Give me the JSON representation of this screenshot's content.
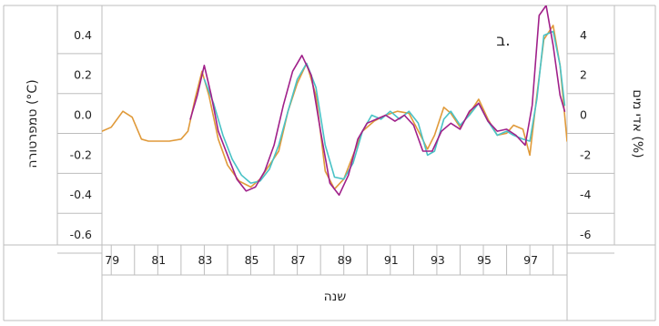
{
  "chart_data": {
    "type": "line",
    "panel_label": "ב.",
    "xlabel": "שנה",
    "ylabel_left": "טמפרטורה (°C)",
    "ylabel_right": "אדי מים (%)",
    "xlim": [
      78.6,
      98.6
    ],
    "ylim_left": [
      -0.65,
      0.55
    ],
    "ylim_right": [
      -6.5,
      5.5
    ],
    "x_ticks": [
      "79",
      "81",
      "83",
      "85",
      "87",
      "89",
      "91",
      "93",
      "95",
      "97"
    ],
    "x_tick_values": [
      79,
      81,
      83,
      85,
      87,
      89,
      91,
      93,
      95,
      97
    ],
    "y_ticks_left": [
      "0.4",
      "0.2",
      "0.0",
      "-0.2",
      "-0.4",
      "-0.6"
    ],
    "y_tick_values_left": [
      0.4,
      0.2,
      0.0,
      -0.2,
      -0.4,
      -0.6
    ],
    "y_ticks_right": [
      "4",
      "2",
      "0",
      "-2",
      "-4",
      "-6"
    ],
    "y_tick_values_right": [
      4,
      2,
      0,
      -2,
      -4,
      -6
    ],
    "grid": false,
    "series": [
      {
        "color": "#e09a3a",
        "x": [
          78.6,
          79.0,
          79.5,
          79.9,
          80.3,
          80.6,
          81.0,
          81.5,
          82.0,
          82.3,
          82.6,
          82.9,
          83.2,
          83.6,
          84.0,
          84.5,
          85.0,
          85.4,
          85.8,
          86.2,
          86.6,
          87.0,
          87.4,
          87.8,
          88.2,
          88.6,
          89.0,
          89.4,
          89.8,
          90.3,
          90.8,
          91.3,
          91.8,
          92.3,
          92.6,
          92.9,
          93.3,
          93.6,
          94.0,
          94.4,
          94.8,
          95.2,
          95.6,
          96.0,
          96.3,
          96.7,
          97.0,
          97.3,
          97.6,
          98.0,
          98.3,
          98.6
        ],
        "y": [
          -0.08,
          -0.06,
          0.02,
          -0.01,
          -0.12,
          -0.13,
          -0.13,
          -0.13,
          -0.12,
          -0.08,
          0.08,
          0.22,
          0.1,
          -0.12,
          -0.25,
          -0.33,
          -0.36,
          -0.32,
          -0.25,
          -0.18,
          0.02,
          0.16,
          0.26,
          0.1,
          -0.28,
          -0.37,
          -0.32,
          -0.2,
          -0.08,
          -0.03,
          0.0,
          0.02,
          0.01,
          -0.1,
          -0.17,
          -0.1,
          0.04,
          0.01,
          -0.06,
          0.01,
          0.08,
          -0.02,
          -0.1,
          -0.09,
          -0.05,
          -0.07,
          -0.2,
          0.1,
          0.38,
          0.45,
          0.25,
          -0.13
        ]
      },
      {
        "color": "#49c2c6",
        "x": [
          83.0,
          83.4,
          83.8,
          84.2,
          84.6,
          85.0,
          85.4,
          85.8,
          86.2,
          86.6,
          87.0,
          87.4,
          87.8,
          88.2,
          88.6,
          89.0,
          89.4,
          89.8,
          90.2,
          90.6,
          91.0,
          91.4,
          91.8,
          92.2,
          92.6,
          92.9,
          93.3,
          93.6,
          94.0,
          94.4,
          94.8,
          95.2,
          95.6,
          96.0,
          96.3,
          96.7,
          97.0,
          97.3,
          97.6,
          98.0,
          98.3,
          98.5
        ],
        "y": [
          0.18,
          0.06,
          -0.1,
          -0.22,
          -0.3,
          -0.34,
          -0.33,
          -0.27,
          -0.15,
          0.02,
          0.18,
          0.26,
          0.14,
          -0.15,
          -0.31,
          -0.32,
          -0.24,
          -0.08,
          0.0,
          -0.02,
          0.02,
          -0.02,
          0.02,
          -0.04,
          -0.2,
          -0.18,
          -0.02,
          0.02,
          -0.05,
          0.0,
          0.06,
          -0.03,
          -0.1,
          -0.08,
          -0.1,
          -0.12,
          -0.13,
          0.08,
          0.4,
          0.42,
          0.25,
          0.05
        ]
      },
      {
        "color": "#a0208a",
        "x": [
          82.4,
          82.7,
          83.0,
          83.3,
          83.6,
          84.0,
          84.4,
          84.8,
          85.2,
          85.6,
          86.0,
          86.4,
          86.8,
          87.2,
          87.6,
          88.0,
          88.4,
          88.8,
          89.2,
          89.6,
          90.0,
          90.4,
          90.8,
          91.2,
          91.6,
          92.0,
          92.4,
          92.8,
          93.2,
          93.6,
          94.0,
          94.4,
          94.8,
          95.2,
          95.6,
          96.0,
          96.4,
          96.8,
          97.1,
          97.4,
          97.7,
          98.0,
          98.3,
          98.5
        ],
        "y": [
          -0.02,
          0.1,
          0.25,
          0.1,
          -0.08,
          -0.2,
          -0.32,
          -0.38,
          -0.36,
          -0.28,
          -0.15,
          0.05,
          0.22,
          0.3,
          0.2,
          -0.08,
          -0.34,
          -0.4,
          -0.3,
          -0.12,
          -0.04,
          -0.02,
          0.0,
          -0.03,
          0.0,
          -0.05,
          -0.18,
          -0.18,
          -0.08,
          -0.04,
          -0.07,
          0.02,
          0.06,
          -0.03,
          -0.08,
          -0.07,
          -0.1,
          -0.15,
          0.05,
          0.5,
          0.55,
          0.35,
          0.1,
          0.02
        ]
      }
    ]
  }
}
